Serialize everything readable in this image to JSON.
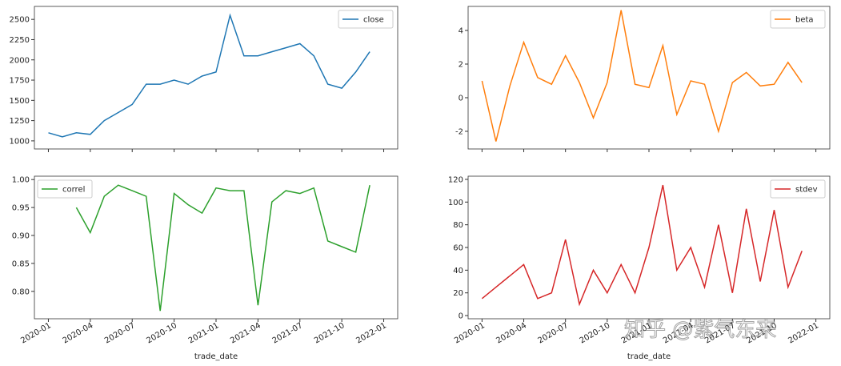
{
  "chart_data": [
    {
      "type": "line",
      "legend": "upper right",
      "xtick_labels": false,
      "x": [
        "2020-01",
        "2020-02",
        "2020-03",
        "2020-04",
        "2020-05",
        "2020-06",
        "2020-07",
        "2020-08",
        "2020-09",
        "2020-10",
        "2020-11",
        "2020-12",
        "2021-01",
        "2021-02",
        "2021-03",
        "2021-04",
        "2021-05",
        "2021-06",
        "2021-07",
        "2021-08",
        "2021-09",
        "2021-10",
        "2021-11",
        "2021-12"
      ],
      "xlim": [
        "2019-12",
        "2022-02"
      ],
      "xticks": [
        "2020-01",
        "2020-04",
        "2020-07",
        "2020-10",
        "2021-01",
        "2021-04",
        "2021-07",
        "2021-10",
        "2022-01"
      ],
      "ylim": [
        900,
        2660
      ],
      "yticks": [
        1000,
        1250,
        1500,
        1750,
        2000,
        2250,
        2500
      ],
      "series": [
        {
          "name": "close",
          "color": "#1f77b4",
          "values": [
            1100,
            1050,
            1100,
            1080,
            1250,
            1350,
            1450,
            1700,
            1700,
            1750,
            1700,
            1800,
            1850,
            2550,
            2050,
            2050,
            2100,
            2150,
            2200,
            2050,
            1700,
            1650,
            1850,
            2100
          ]
        }
      ]
    },
    {
      "type": "line",
      "legend": "upper right",
      "xtick_labels": false,
      "x": [
        "2020-01",
        "2020-02",
        "2020-03",
        "2020-04",
        "2020-05",
        "2020-06",
        "2020-07",
        "2020-08",
        "2020-09",
        "2020-10",
        "2020-11",
        "2020-12",
        "2021-01",
        "2021-02",
        "2021-03",
        "2021-04",
        "2021-05",
        "2021-06",
        "2021-07",
        "2021-08",
        "2021-09",
        "2021-10",
        "2021-11",
        "2021-12"
      ],
      "xlim": [
        "2019-12",
        "2022-02"
      ],
      "xticks": [
        "2020-01",
        "2020-04",
        "2020-07",
        "2020-10",
        "2021-01",
        "2021-04",
        "2021-07",
        "2021-10",
        "2022-01"
      ],
      "ylim": [
        -3.05,
        5.43
      ],
      "yticks": [
        -2,
        0,
        2,
        4
      ],
      "series": [
        {
          "name": "beta",
          "color": "#ff7f0e",
          "values": [
            1.0,
            -2.6,
            0.7,
            3.3,
            1.2,
            0.8,
            2.5,
            0.9,
            -1.2,
            0.9,
            5.2,
            0.8,
            0.6,
            3.1,
            -1.0,
            1.0,
            0.8,
            -2.0,
            0.9,
            1.5,
            0.7,
            0.8,
            2.1,
            0.9
          ]
        }
      ]
    },
    {
      "type": "line",
      "legend": "upper left",
      "xtick_labels": true,
      "xlabel": "trade_date",
      "x": [
        "2020-01",
        "2020-02",
        "2020-03",
        "2020-04",
        "2020-05",
        "2020-06",
        "2020-07",
        "2020-08",
        "2020-09",
        "2020-10",
        "2020-11",
        "2020-12",
        "2021-01",
        "2021-02",
        "2021-03",
        "2021-04",
        "2021-05",
        "2021-06",
        "2021-07",
        "2021-08",
        "2021-09",
        "2021-10",
        "2021-11",
        "2021-12"
      ],
      "xlim": [
        "2019-12",
        "2022-02"
      ],
      "xticks": [
        "2020-01",
        "2020-04",
        "2020-07",
        "2020-10",
        "2021-01",
        "2021-04",
        "2021-07",
        "2021-10",
        "2022-01"
      ],
      "ylim": [
        0.751,
        1.006
      ],
      "yticks": [
        {
          "value": 0.8,
          "label": "0.80"
        },
        {
          "value": 0.85,
          "label": "0.85"
        },
        {
          "value": 0.9,
          "label": "0.90"
        },
        {
          "value": 0.95,
          "label": "0.95"
        },
        {
          "value": 1.0,
          "label": "1.00"
        }
      ],
      "series": [
        {
          "name": "correl",
          "color": "#2ca02c",
          "values": [
            null,
            null,
            0.95,
            0.905,
            0.97,
            0.99,
            0.98,
            0.97,
            0.765,
            0.975,
            0.955,
            0.94,
            0.985,
            0.98,
            0.98,
            0.775,
            0.96,
            0.98,
            0.975,
            0.985,
            0.89,
            0.88,
            0.87,
            0.99
          ]
        }
      ]
    },
    {
      "type": "line",
      "legend": "upper right",
      "xtick_labels": true,
      "xlabel": "trade_date",
      "x": [
        "2020-01",
        "2020-02",
        "2020-03",
        "2020-04",
        "2020-05",
        "2020-06",
        "2020-07",
        "2020-08",
        "2020-09",
        "2020-10",
        "2020-11",
        "2020-12",
        "2021-01",
        "2021-02",
        "2021-03",
        "2021-04",
        "2021-05",
        "2021-06",
        "2021-07",
        "2021-08",
        "2021-09",
        "2021-10",
        "2021-11",
        "2021-12"
      ],
      "xlim": [
        "2019-12",
        "2022-02"
      ],
      "xticks": [
        "2020-01",
        "2020-04",
        "2020-07",
        "2020-10",
        "2021-01",
        "2021-04",
        "2021-07",
        "2021-10",
        "2022-01"
      ],
      "ylim": [
        -2.8,
        122.8
      ],
      "yticks": [
        0,
        20,
        40,
        60,
        80,
        100,
        120
      ],
      "series": [
        {
          "name": "stdev",
          "color": "#d62728",
          "values": [
            15,
            25,
            35,
            45,
            15,
            20,
            67,
            10,
            40,
            20,
            45,
            20,
            60,
            115,
            40,
            60,
            25,
            80,
            20,
            94,
            30,
            93,
            25,
            57
          ]
        }
      ]
    }
  ],
  "watermark": "知乎 @紫气东来"
}
